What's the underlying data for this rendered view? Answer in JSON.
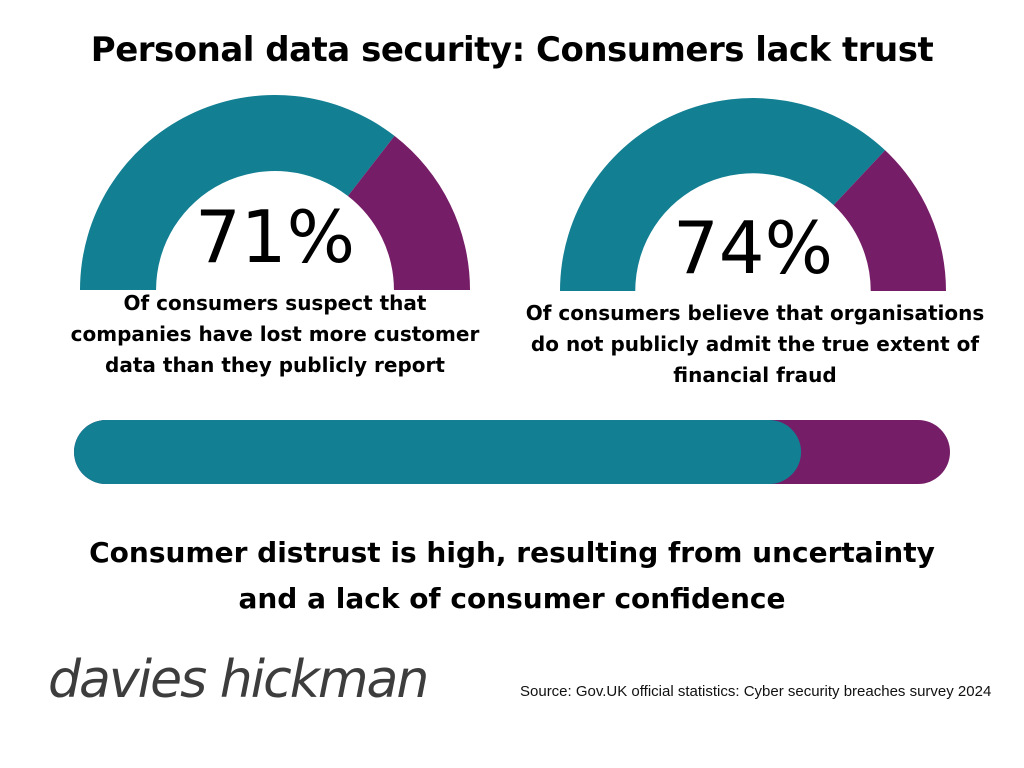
{
  "title": "Personal data security: Consumers lack trust",
  "colors": {
    "primary": "#127f92",
    "secondary": "#761d67"
  },
  "chart_data": [
    {
      "type": "gauge",
      "value": 71,
      "unit": "%",
      "display_value": "71%",
      "caption_lines": [
        "Of consumers suspect that",
        "companies have lost more customer",
        "data than they publicly report"
      ]
    },
    {
      "type": "gauge",
      "value": 74,
      "unit": "%",
      "display_value": "74%",
      "caption_lines": [
        "Of consumers believe that organisations",
        "do not publicly admit the true extent of",
        "financial fraud"
      ]
    },
    {
      "type": "progress-bar",
      "value": 83,
      "unit": "%"
    }
  ],
  "conclusion_lines": [
    "Consumer distrust is high, resulting from uncertainty",
    "and a lack of consumer confidence"
  ],
  "logo_text": "davies hickman",
  "source": "Source: Gov.UK official statistics: Cyber security breaches survey 2024"
}
